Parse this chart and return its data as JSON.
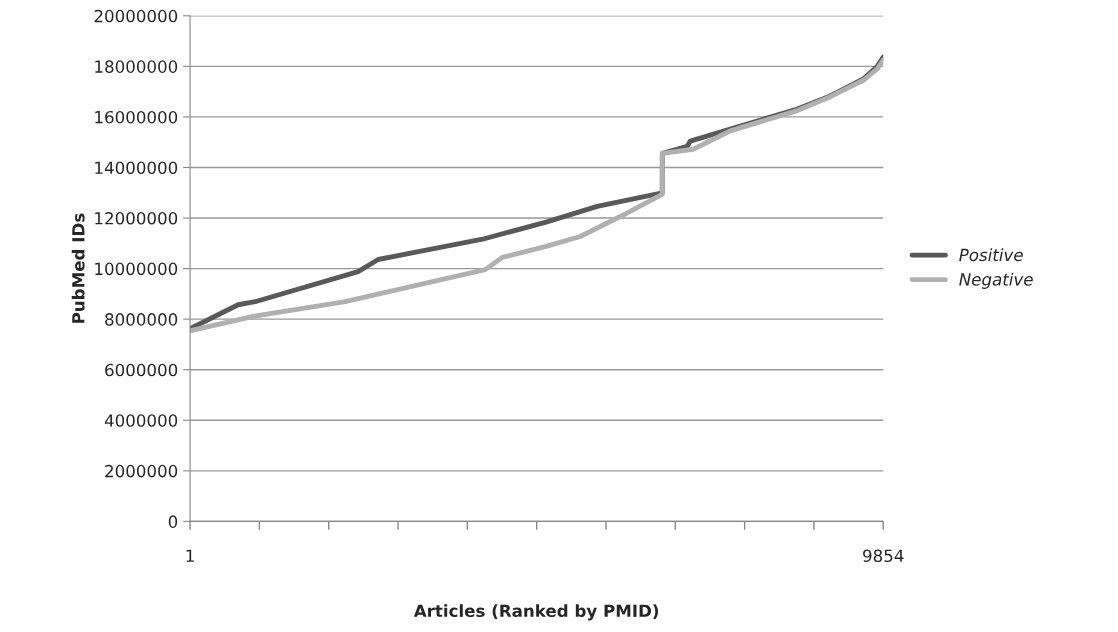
{
  "chart_data": {
    "type": "line",
    "xlabel": "Articles (Ranked by PMID)",
    "ylabel": "PubMed IDs",
    "xlim": [
      1,
      9854
    ],
    "xticks": [
      {
        "value": 1,
        "label": "1"
      },
      {
        "value": 986,
        "label": null
      },
      {
        "value": 1972,
        "label": null
      },
      {
        "value": 2957,
        "label": null
      },
      {
        "value": 3942,
        "label": null
      },
      {
        "value": 4928,
        "label": null
      },
      {
        "value": 5913,
        "label": null
      },
      {
        "value": 6898,
        "label": null
      },
      {
        "value": 7884,
        "label": null
      },
      {
        "value": 8869,
        "label": null
      },
      {
        "value": 9854,
        "label": "9854"
      }
    ],
    "ylim": [
      0,
      20000000
    ],
    "yticks": [
      0,
      2000000,
      4000000,
      6000000,
      8000000,
      10000000,
      12000000,
      14000000,
      16000000,
      18000000,
      20000000
    ],
    "grid": "y",
    "legend": "right",
    "marker": "none",
    "line_style": "solid",
    "series": [
      {
        "name": "Positive",
        "color": "#595959",
        "x": [
          1,
          684,
          925,
          2390,
          2674,
          4196,
          5049,
          5789,
          6713,
          6714,
          7068,
          7111,
          7680,
          8633,
          9102,
          9571,
          9770,
          9854
        ],
        "values": [
          7620000,
          8570000,
          8690000,
          9880000,
          10360000,
          11190000,
          11830000,
          12460000,
          13000000,
          14560000,
          14840000,
          15040000,
          15520000,
          16310000,
          16830000,
          17500000,
          18000000,
          18370000
        ]
      },
      {
        "name": "Negative",
        "color": "#b0b0b0",
        "x": [
          1,
          883,
          2205,
          4196,
          4438,
          5049,
          5547,
          6116,
          6713,
          6714,
          7154,
          7680,
          8633,
          9102,
          9571,
          9770,
          9854
        ],
        "values": [
          7540000,
          8100000,
          8690000,
          9960000,
          10440000,
          10870000,
          11270000,
          12060000,
          12940000,
          14560000,
          14720000,
          15450000,
          16250000,
          16800000,
          17450000,
          17900000,
          18250000
        ]
      }
    ]
  }
}
